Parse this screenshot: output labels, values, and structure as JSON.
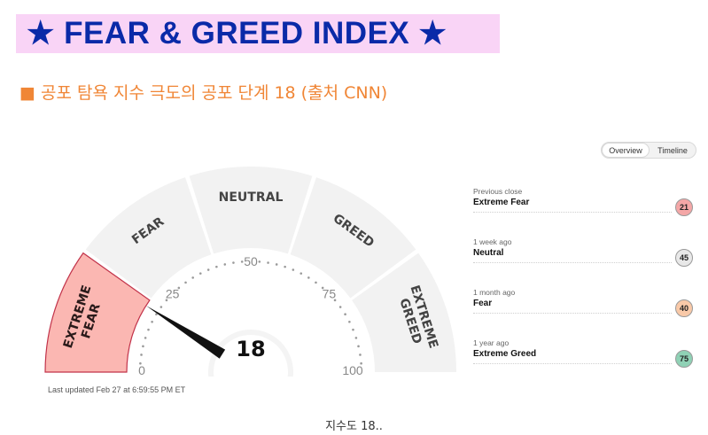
{
  "banner": {
    "title": "★ FEAR & GREED INDEX ★"
  },
  "subtitle": "■ 공포 탐욕 지수 극도의 공포 단계 18 (출처 CNN)",
  "gauge": {
    "segments": [
      "EXTREME FEAR",
      "FEAR",
      "NEUTRAL",
      "GREED",
      "EXTREME GREED"
    ],
    "active_segment": "EXTREME FEAR",
    "ticks": [
      "0",
      "25",
      "50",
      "75",
      "100"
    ],
    "value": 18,
    "value_label": "18",
    "scale": [
      0,
      100
    ]
  },
  "last_updated": "Last updated Feb 27 at 6:59:55 PM ET",
  "toggle": {
    "overview": "Overview",
    "timeline": "Timeline",
    "active": "Overview"
  },
  "history": [
    {
      "period": "Previous close",
      "rating": "Extreme Fear",
      "value": "21",
      "color": "#f4a7a7"
    },
    {
      "period": "1 week ago",
      "rating": "Neutral",
      "value": "45",
      "color": "#e8e8e8"
    },
    {
      "period": "1 month ago",
      "rating": "Fear",
      "value": "40",
      "color": "#f9c9a8"
    },
    {
      "period": "1 year ago",
      "rating": "Extreme Greed",
      "value": "75",
      "color": "#8fd1b5"
    }
  ],
  "caption": "지수도 18..",
  "colors": {
    "banner_bg": "#f9d4f6",
    "banner_text": "#0a2aa8",
    "subtitle": "#f08636",
    "extreme_fear_fill": "#fbb7b2",
    "extreme_fear_stroke": "#c2334a",
    "segment_fill": "#f2f2f2"
  }
}
